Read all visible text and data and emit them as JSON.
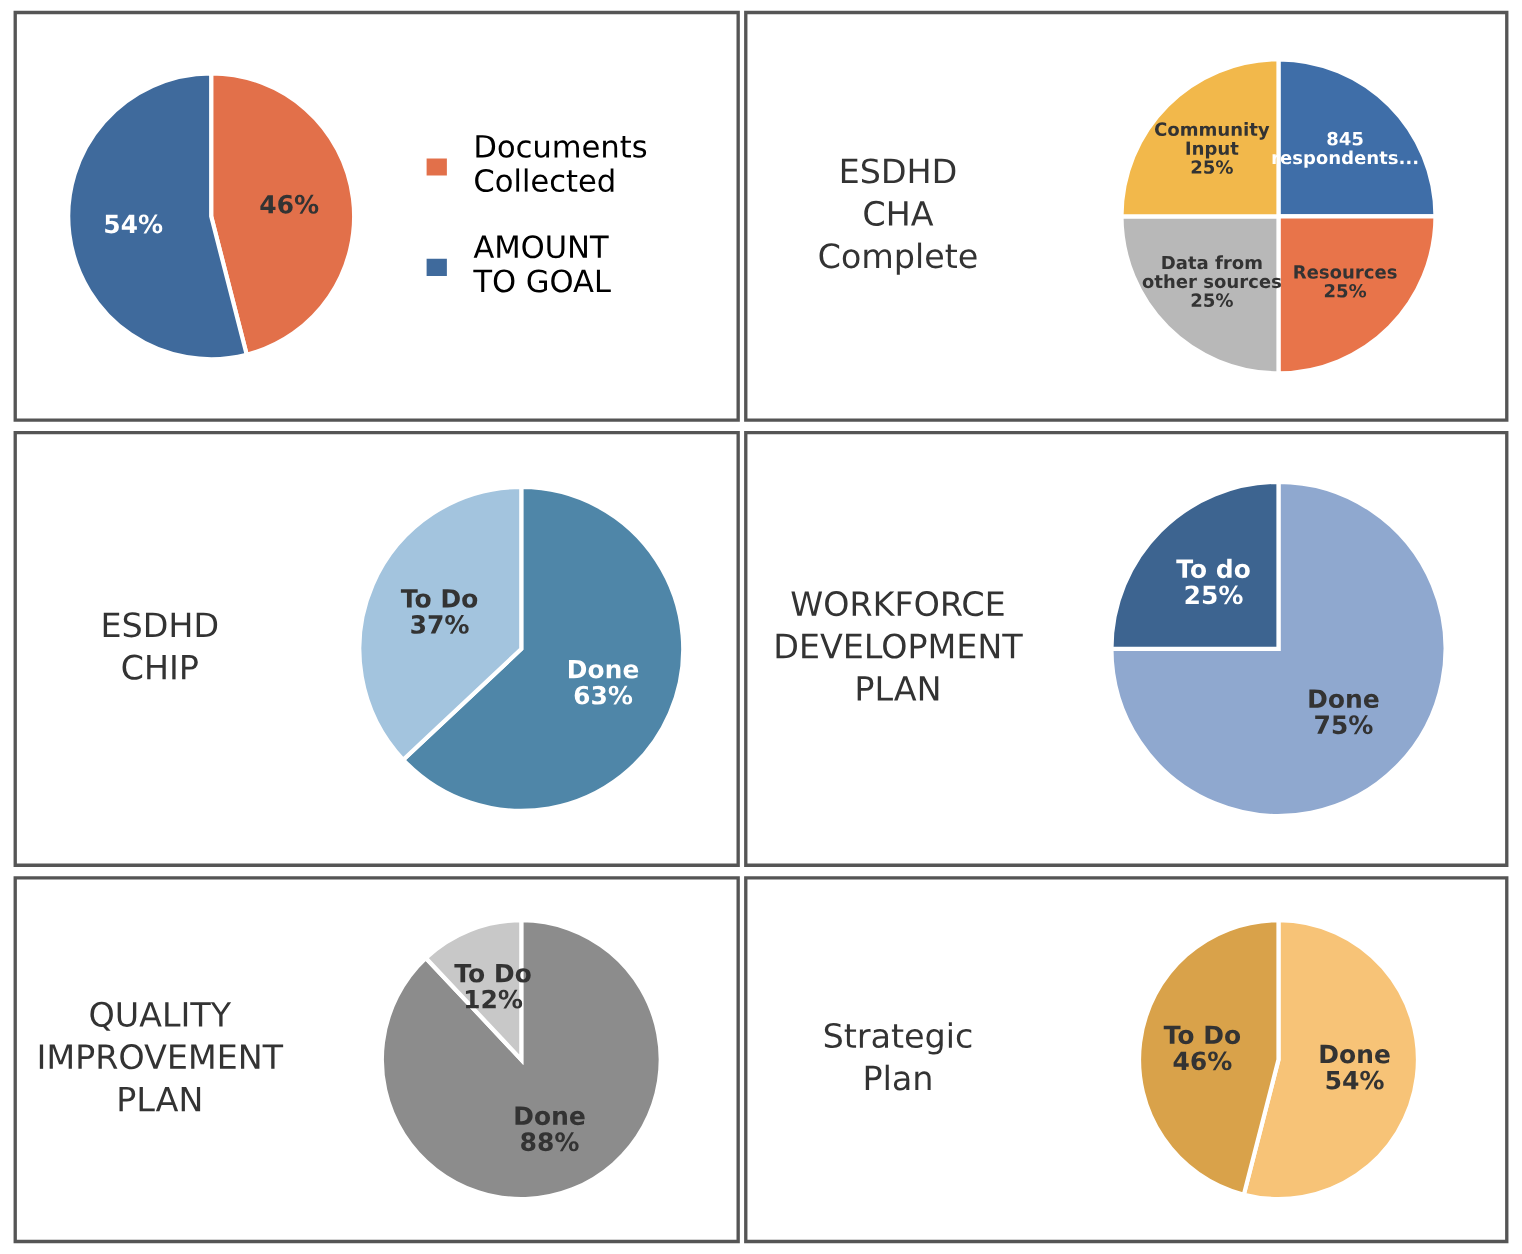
{
  "chart_data": [
    {
      "type": "pie",
      "categories": [
        "Documents Collected",
        "AMOUNT TO GOAL"
      ],
      "values": [
        46,
        54
      ],
      "colors": [
        "#e2704a",
        "#3f6a9c"
      ],
      "value_labels": [
        "46%",
        "54%"
      ],
      "legend": "right"
    },
    {
      "type": "pie",
      "title": "ESDHD\nCHA\nComplete",
      "categories": [
        "845\nrespondents...",
        "Resources",
        "Data from\nother sources",
        "Community\nInput"
      ],
      "values": [
        25,
        25,
        25,
        25
      ],
      "colors": [
        "#3f6ea8",
        "#e8744a",
        "#b8b8b8",
        "#f2b84b"
      ],
      "value_labels": [
        null,
        "25%",
        "25%",
        "25%"
      ]
    },
    {
      "type": "pie",
      "title": "ESDHD\nCHIP",
      "categories": [
        "Done",
        "To Do"
      ],
      "values": [
        63,
        37
      ],
      "colors": [
        "#4f86a8",
        "#a3c4de"
      ],
      "value_labels": [
        "63%",
        "37%"
      ]
    },
    {
      "type": "pie",
      "title": "WORKFORCE\nDEVELOPMENT\nPLAN",
      "categories": [
        "Done",
        "To do"
      ],
      "values": [
        75,
        25
      ],
      "colors": [
        "#8fa8cf",
        "#3d6490"
      ],
      "value_labels": [
        "75%",
        "25%"
      ]
    },
    {
      "type": "pie",
      "title": "QUALITY\nIMPROVEMENT\nPLAN",
      "categories": [
        "Done",
        "To Do"
      ],
      "values": [
        88,
        12
      ],
      "colors": [
        "#8c8c8c",
        "#c8c8c8"
      ],
      "value_labels": [
        "88%",
        "12%"
      ]
    },
    {
      "type": "pie",
      "title": "Strategic\nPlan",
      "categories": [
        "Done",
        "To Do"
      ],
      "values": [
        54,
        46
      ],
      "colors": [
        "#f7c377",
        "#d9a24a"
      ],
      "value_labels": [
        "54%",
        "46%"
      ]
    }
  ]
}
